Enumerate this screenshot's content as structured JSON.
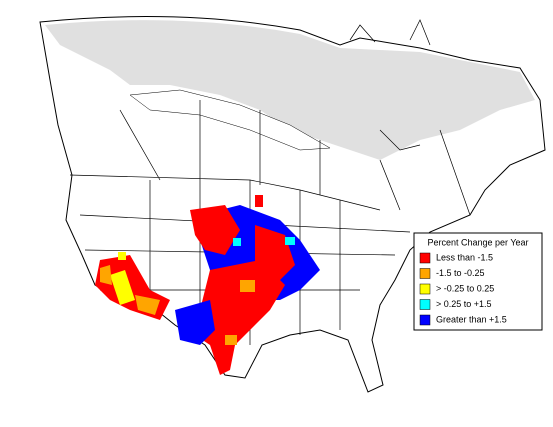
{
  "legend": {
    "title": "Percent Change per Year",
    "items": [
      {
        "label": "Less than -1.5",
        "color": "#ff0000"
      },
      {
        "label": "-1.5 to -0.25",
        "color": "#ffa500"
      },
      {
        "label": "> -0.25 to 0.25",
        "color": "#ffff00"
      },
      {
        "label": "> 0.25 to +1.5",
        "color": "#00ffff"
      },
      {
        "label": "Greater than +1.5",
        "color": "#0000ff"
      }
    ]
  }
}
